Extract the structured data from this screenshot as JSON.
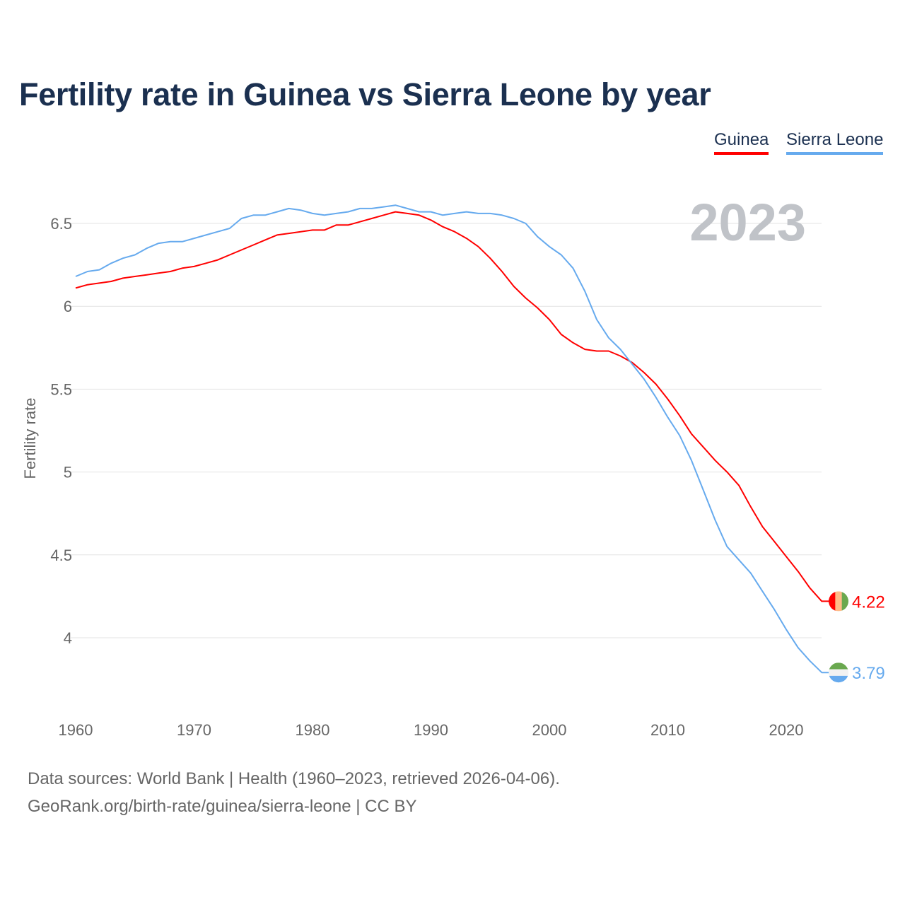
{
  "title": "Fertility rate in Guinea vs Sierra Leone by year",
  "legend": {
    "guinea": "Guinea",
    "sierra_leone": "Sierra Leone"
  },
  "footer": {
    "sources": "Data sources: World Bank | Health (1960–2023, retrieved 2026-04-06).",
    "link": "GeoRank.org/birth-rate/guinea/sierra-leone | CC BY"
  },
  "chart_data": {
    "type": "line",
    "title": "Fertility rate in Guinea vs Sierra Leone by year",
    "xlabel": "",
    "ylabel": "Fertility rate",
    "year_label": "2023",
    "xlim": [
      1960,
      2023
    ],
    "ylim": [
      3.75,
      6.7
    ],
    "x_ticks": [
      1960,
      1970,
      1980,
      1990,
      2000,
      2010,
      2020
    ],
    "x_tick_labels": [
      "1960",
      "1970",
      "1980",
      "1990",
      "2000",
      "2010",
      "2020"
    ],
    "y_ticks": [
      4,
      4.5,
      5,
      5.5,
      6,
      6.5
    ],
    "y_tick_labels": [
      "4",
      "4.5",
      "5",
      "5.5",
      "6",
      "6.5"
    ],
    "grid": true,
    "legend_position": "top-right",
    "x_start": 1960,
    "series": [
      {
        "name": "Guinea",
        "color": "#ff0000",
        "end_label": "4.22",
        "flag_colors": [
          "#ff0000",
          "#ffbb88",
          "#6aa84f"
        ],
        "values": [
          6.11,
          6.13,
          6.14,
          6.15,
          6.17,
          6.18,
          6.19,
          6.2,
          6.21,
          6.23,
          6.24,
          6.26,
          6.28,
          6.31,
          6.34,
          6.37,
          6.4,
          6.43,
          6.44,
          6.45,
          6.46,
          6.46,
          6.49,
          6.49,
          6.51,
          6.53,
          6.55,
          6.57,
          6.56,
          6.55,
          6.52,
          6.48,
          6.45,
          6.41,
          6.36,
          6.29,
          6.21,
          6.12,
          6.05,
          5.99,
          5.92,
          5.83,
          5.78,
          5.74,
          5.73,
          5.73,
          5.7,
          5.66,
          5.6,
          5.53,
          5.44,
          5.34,
          5.23,
          5.15,
          5.07,
          5.0,
          4.92,
          4.79,
          4.67,
          4.58,
          4.49,
          4.4,
          4.3,
          4.22
        ]
      },
      {
        "name": "Sierra Leone",
        "color": "#66aaee",
        "end_label": "3.79",
        "flag_colors": [
          "#6aa84f",
          "#f2f2f2",
          "#66aaee"
        ],
        "values": [
          6.18,
          6.21,
          6.22,
          6.26,
          6.29,
          6.31,
          6.35,
          6.38,
          6.39,
          6.39,
          6.41,
          6.43,
          6.45,
          6.47,
          6.53,
          6.55,
          6.55,
          6.57,
          6.59,
          6.58,
          6.56,
          6.55,
          6.56,
          6.57,
          6.59,
          6.59,
          6.6,
          6.61,
          6.59,
          6.57,
          6.57,
          6.55,
          6.56,
          6.57,
          6.56,
          6.56,
          6.55,
          6.53,
          6.5,
          6.42,
          6.36,
          6.31,
          6.23,
          6.09,
          5.92,
          5.81,
          5.74,
          5.65,
          5.56,
          5.45,
          5.33,
          5.22,
          5.07,
          4.89,
          4.71,
          4.55,
          4.47,
          4.39,
          4.28,
          4.17,
          4.05,
          3.94,
          3.86,
          3.79
        ]
      }
    ]
  }
}
